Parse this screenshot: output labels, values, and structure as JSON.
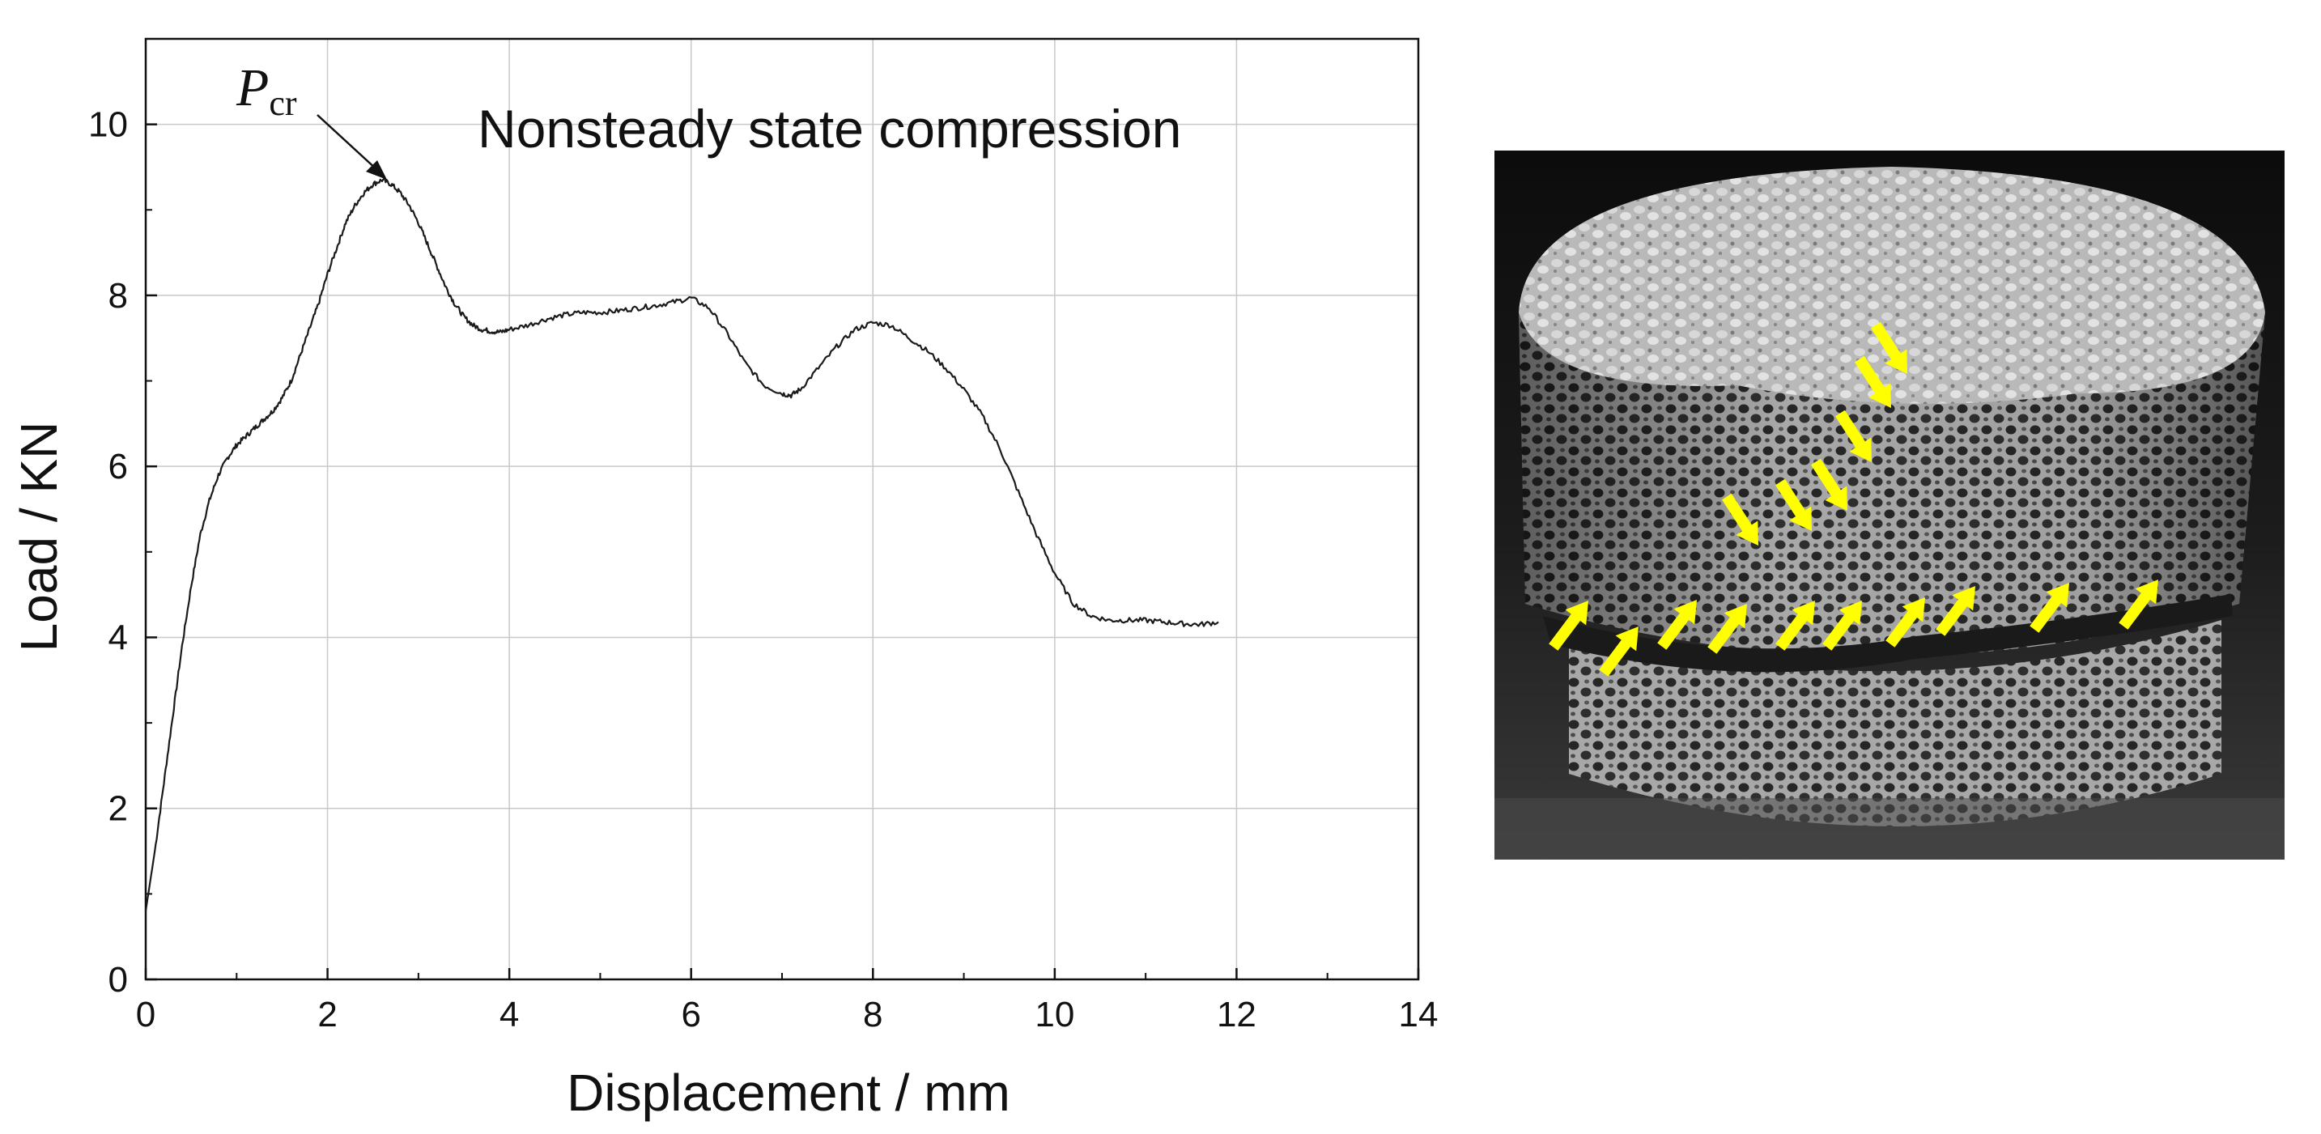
{
  "chart_data": {
    "type": "line",
    "title": "Nonsteady state compression",
    "xlabel": "Displacement / mm",
    "ylabel": "Load / KN",
    "xlim": [
      0,
      14
    ],
    "ylim": [
      0,
      11
    ],
    "xticks": [
      0,
      2,
      4,
      6,
      8,
      10,
      12,
      14
    ],
    "yticks": [
      0,
      2,
      4,
      6,
      8,
      10
    ],
    "grid": true,
    "annotation": {
      "text_main": "P",
      "text_sub": "cr",
      "x": 2.7,
      "y": 9.35
    },
    "series": [
      {
        "x": [
          0,
          0.1,
          0.2,
          0.3,
          0.4,
          0.5,
          0.6,
          0.7,
          0.8,
          0.9,
          1.0,
          1.1,
          1.2,
          1.3,
          1.4,
          1.5,
          1.6,
          1.7,
          1.8,
          1.9,
          2.0,
          2.1,
          2.2,
          2.3,
          2.4,
          2.5,
          2.6,
          2.7,
          2.8,
          2.9,
          3.0,
          3.1,
          3.2,
          3.3,
          3.4,
          3.5,
          3.6,
          3.7,
          3.8,
          3.9,
          4.0,
          4.2,
          4.4,
          4.6,
          4.8,
          5.0,
          5.2,
          5.4,
          5.6,
          5.8,
          6.0,
          6.2,
          6.4,
          6.6,
          6.8,
          7.0,
          7.1,
          7.2,
          7.4,
          7.6,
          7.8,
          8.0,
          8.2,
          8.4,
          8.6,
          8.8,
          9.0,
          9.2,
          9.4,
          9.6,
          9.8,
          10.0,
          10.2,
          10.4,
          10.6,
          10.8,
          11.0,
          11.2,
          11.4,
          11.6,
          11.8
        ],
        "y": [
          0.8,
          1.5,
          2.3,
          3.1,
          3.9,
          4.6,
          5.2,
          5.6,
          5.9,
          6.1,
          6.25,
          6.35,
          6.45,
          6.55,
          6.65,
          6.8,
          7.0,
          7.3,
          7.6,
          7.9,
          8.25,
          8.55,
          8.85,
          9.05,
          9.2,
          9.3,
          9.35,
          9.3,
          9.2,
          9.05,
          8.85,
          8.6,
          8.35,
          8.1,
          7.9,
          7.75,
          7.65,
          7.6,
          7.58,
          7.57,
          7.6,
          7.65,
          7.72,
          7.77,
          7.8,
          7.8,
          7.82,
          7.85,
          7.88,
          7.92,
          7.97,
          7.85,
          7.55,
          7.2,
          6.95,
          6.85,
          6.83,
          6.9,
          7.15,
          7.4,
          7.6,
          7.68,
          7.65,
          7.5,
          7.35,
          7.15,
          6.9,
          6.6,
          6.2,
          5.7,
          5.2,
          4.75,
          4.4,
          4.25,
          4.2,
          4.2,
          4.2,
          4.18,
          4.16,
          4.15,
          4.18
        ]
      }
    ]
  },
  "photo": {
    "annotation_color": "#ffff00",
    "arrow_count": 16
  }
}
